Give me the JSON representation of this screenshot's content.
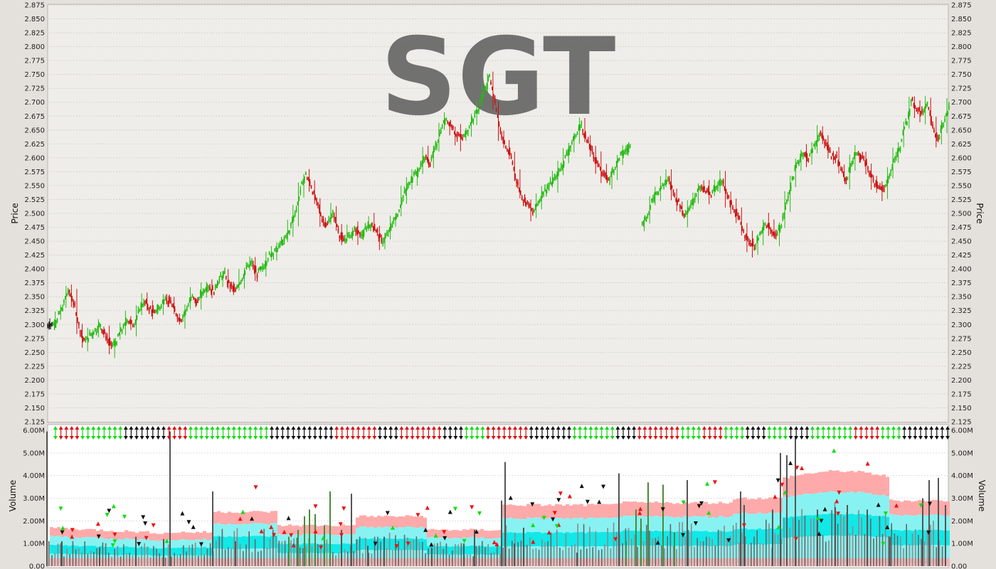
{
  "chart_data": [
    {
      "type": "candlestick",
      "watermark": "SGT",
      "ylabel": "Price",
      "ylim": [
        2.125,
        2.875
      ],
      "yticks": [
        "2.125",
        "2.150",
        "2.175",
        "2.200",
        "2.225",
        "2.250",
        "2.275",
        "2.300",
        "2.325",
        "2.350",
        "2.375",
        "2.400",
        "2.425",
        "2.450",
        "2.475",
        "2.500",
        "2.525",
        "2.550",
        "2.575",
        "2.600",
        "2.625",
        "2.650",
        "2.675",
        "2.700",
        "2.725",
        "2.750",
        "2.775",
        "2.800",
        "2.825",
        "2.850",
        "2.875"
      ],
      "grid": true,
      "close_series": [
        2.3,
        2.31,
        2.33,
        2.36,
        2.34,
        2.3,
        2.27,
        2.28,
        2.29,
        2.3,
        2.28,
        2.26,
        2.27,
        2.29,
        2.31,
        2.3,
        2.32,
        2.34,
        2.33,
        2.32,
        2.33,
        2.35,
        2.34,
        2.32,
        2.31,
        2.33,
        2.35,
        2.34,
        2.36,
        2.37,
        2.36,
        2.38,
        2.39,
        2.37,
        2.36,
        2.38,
        2.4,
        2.41,
        2.39,
        2.4,
        2.42,
        2.43,
        2.44,
        2.45,
        2.47,
        2.5,
        2.54,
        2.57,
        2.55,
        2.52,
        2.49,
        2.48,
        2.5,
        2.47,
        2.45,
        2.46,
        2.47,
        2.46,
        2.47,
        2.48,
        2.47,
        2.45,
        2.46,
        2.48,
        2.5,
        2.53,
        2.55,
        2.57,
        2.58,
        2.6,
        2.59,
        2.62,
        2.65,
        2.67,
        2.66,
        2.64,
        2.63,
        2.65,
        2.67,
        2.69,
        2.72,
        2.75,
        2.7,
        2.65,
        2.62,
        2.6,
        2.56,
        2.53,
        2.52,
        2.5,
        2.52,
        2.54,
        2.55,
        2.56,
        2.58,
        2.6,
        2.62,
        2.64,
        2.66,
        2.63,
        2.61,
        2.59,
        2.57,
        2.56,
        2.58,
        2.6,
        2.61,
        2.62,
        null,
        null,
        2.49,
        2.52,
        2.54,
        2.55,
        2.56,
        2.54,
        2.52,
        2.5,
        2.51,
        2.53,
        2.55,
        2.54,
        2.53,
        2.55,
        2.56,
        2.53,
        2.51,
        2.49,
        2.47,
        2.45,
        2.44,
        2.46,
        2.48,
        2.47,
        2.46,
        2.48,
        2.52,
        2.56,
        2.59,
        2.61,
        2.6,
        2.62,
        2.64,
        2.63,
        2.61,
        2.6,
        2.58,
        2.56,
        2.59,
        2.61,
        2.6,
        2.58,
        2.56,
        2.55,
        2.54,
        2.57,
        2.6,
        2.62,
        2.66,
        2.7,
        2.69,
        2.68,
        2.7,
        2.66,
        2.63,
        2.66,
        2.69
      ]
    },
    {
      "type": "bar",
      "ylabel": "Volume",
      "ylim": [
        0,
        6000000
      ],
      "yticks": [
        "0.00",
        "1.00M",
        "2.00M",
        "3.00M",
        "4.00M",
        "5.00M",
        "6.00M"
      ],
      "grid": true,
      "spikes_millions": [
        [
          65,
          5.95
        ],
        [
          86,
          1.1
        ],
        [
          139,
          0.8
        ],
        [
          190,
          1.3
        ],
        [
          229,
          1.2
        ],
        [
          238,
          5.95
        ],
        [
          298,
          3.3
        ],
        [
          330,
          1.1
        ],
        [
          405,
          1.3
        ],
        [
          418,
          1.6
        ],
        [
          427,
          2.2
        ],
        [
          434,
          2.5
        ],
        [
          442,
          2.3
        ],
        [
          455,
          1.8
        ],
        [
          463,
          3.3
        ],
        [
          479,
          1.6
        ],
        [
          493,
          3.2
        ],
        [
          516,
          0.9
        ],
        [
          539,
          1.3
        ],
        [
          606,
          0.8
        ],
        [
          651,
          1.0
        ],
        [
          666,
          1.6
        ],
        [
          704,
          2.9
        ],
        [
          709,
          4.6
        ],
        [
          722,
          1.0
        ],
        [
          735,
          1.7
        ],
        [
          810,
          0.6
        ],
        [
          869,
          4.1
        ],
        [
          879,
          1.1
        ],
        [
          893,
          2.5
        ],
        [
          900,
          2.1
        ],
        [
          910,
          3.7
        ],
        [
          931,
          3.6
        ],
        [
          947,
          1.5
        ],
        [
          965,
          3.8
        ],
        [
          1040,
          3.3
        ],
        [
          1045,
          2.7
        ],
        [
          1085,
          2.5
        ],
        [
          1096,
          5.0
        ],
        [
          1105,
          4.9
        ],
        [
          1117,
          5.7
        ],
        [
          1148,
          2.5
        ],
        [
          1173,
          2.6
        ],
        [
          1190,
          2.7
        ],
        [
          1218,
          2.5
        ],
        [
          1250,
          1.3
        ],
        [
          1296,
          3.0
        ],
        [
          1305,
          3.8
        ],
        [
          1318,
          3.9
        ],
        [
          1328,
          2.7
        ]
      ]
    }
  ]
}
